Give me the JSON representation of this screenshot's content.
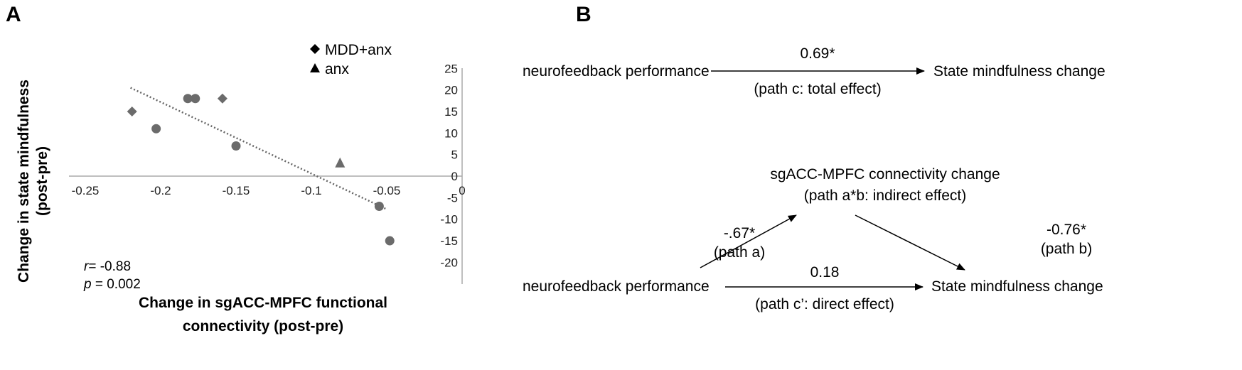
{
  "panels": {
    "a_label": "A",
    "b_label": "B"
  },
  "chart_data": {
    "type": "scatter",
    "xlabel": [
      "Change in sgACC-MPFC functional",
      "connectivity (post-pre)"
    ],
    "ylabel": [
      "Change in state mindfulness",
      "(post-pre)"
    ],
    "xlim": [
      -0.25,
      0
    ],
    "ylim": [
      -20,
      25
    ],
    "xticks": [
      "-0.25",
      "-0.2",
      "-0.15",
      "-0.1",
      "-0.05",
      "0"
    ],
    "xtick_values": [
      -0.25,
      -0.2,
      -0.15,
      -0.1,
      -0.05,
      0
    ],
    "yticks": [
      "25",
      "20",
      "15",
      "10",
      "5",
      "0",
      "-5",
      "-10",
      "-15",
      "-20"
    ],
    "ytick_values": [
      25,
      20,
      15,
      10,
      5,
      0,
      -5,
      -10,
      -15,
      -20
    ],
    "grid": false,
    "legend_position": "top-right",
    "legend": [
      {
        "label": "MDD+anx",
        "marker": "diamond"
      },
      {
        "label": "anx",
        "marker": "triangle"
      }
    ],
    "series": [
      {
        "name": "MDD+anx",
        "marker": "diamond",
        "color": "#6b6b6b",
        "points": [
          [
            -0.219,
            15
          ],
          [
            -0.159,
            18
          ]
        ]
      },
      {
        "name": "anx",
        "marker": "triangle",
        "color": "#6b6b6b",
        "points": [
          [
            -0.081,
            3
          ]
        ]
      },
      {
        "marker": "circle",
        "color": "#6b6b6b",
        "points": [
          [
            -0.203,
            11
          ],
          [
            -0.182,
            18
          ],
          [
            -0.177,
            18
          ],
          [
            -0.15,
            7
          ],
          [
            -0.055,
            -7
          ],
          [
            -0.048,
            -15
          ]
        ]
      }
    ],
    "trendline": {
      "style": "dotted",
      "color": "#6b6b6b",
      "from": [
        -0.22,
        20.5
      ],
      "to": [
        -0.05,
        -7.7
      ]
    },
    "annotations": {
      "r_symbol": "r",
      "r_value": "= -0.88",
      "p_symbol": "p",
      "p_value": " = 0.002"
    }
  },
  "diagram": {
    "top": {
      "source": "neurofeedback performance",
      "target": "State mindfulness change",
      "coef": "0.69*",
      "path_label": "(path c: total effect)"
    },
    "mediator": {
      "label": "sgACC-MPFC connectivity change",
      "path_label": "(path a*b: indirect effect)"
    },
    "path_a": {
      "coef": "-.67*",
      "label": "(path a)"
    },
    "path_b": {
      "coef": "-0.76*",
      "label": "(path b)"
    },
    "bottom": {
      "source": "neurofeedback performance",
      "target": "State mindfulness change",
      "coef": "0.18",
      "path_label": "(path c’: direct effect)"
    }
  }
}
